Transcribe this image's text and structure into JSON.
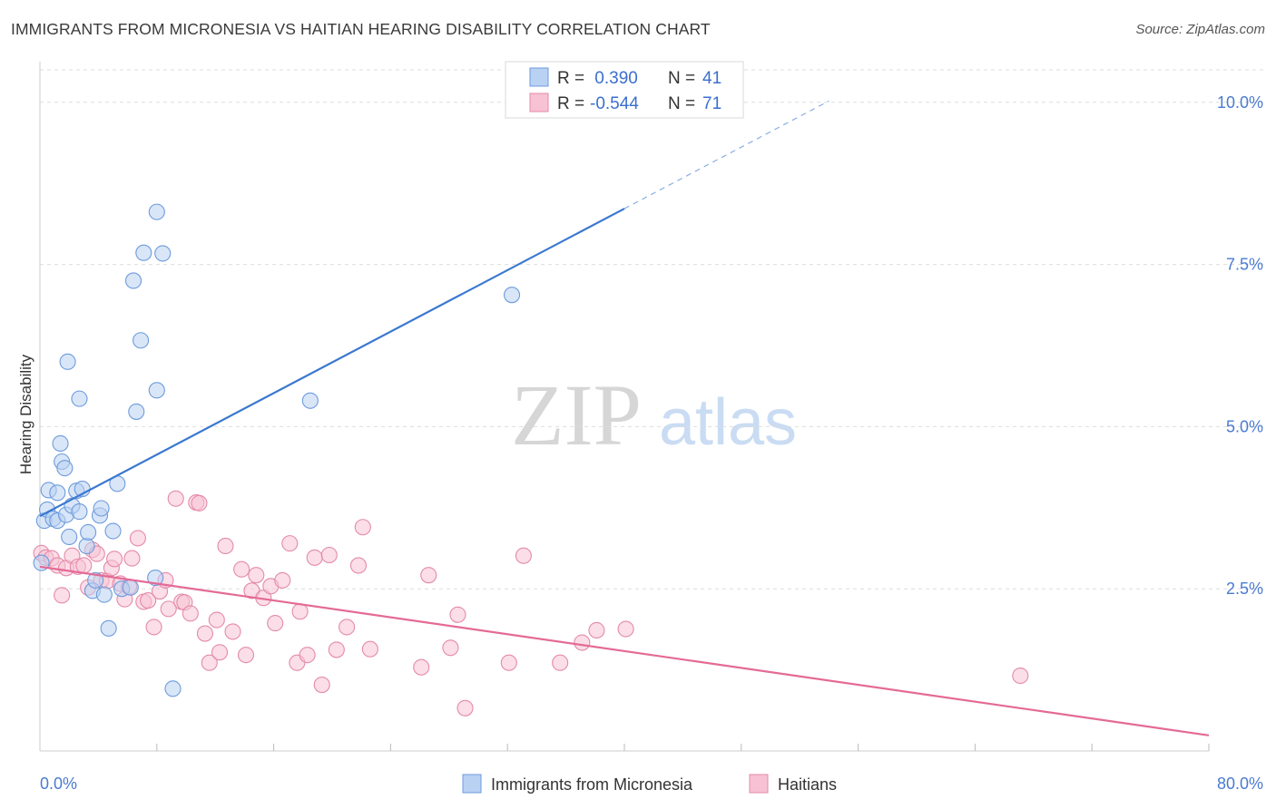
{
  "title": "IMMIGRANTS FROM MICRONESIA VS HAITIAN HEARING DISABILITY CORRELATION CHART",
  "source": "Source: ZipAtlas.com",
  "watermark": {
    "zip": "ZIP",
    "atlas": "atlas"
  },
  "colors": {
    "blue": "#3a78d0",
    "blue_fill": "#b9d1f3",
    "pink": "#e46a96",
    "pink_fill": "#f7c2d3",
    "grid": "#dddddd",
    "tick_label": "#4a7bd0"
  },
  "legend": {
    "rows": [
      {
        "r_label": "R = ",
        "r_value": " 0.390",
        "n_label": "N = ",
        "n_value": "41"
      },
      {
        "r_label": "R = ",
        "r_value": "-0.544",
        "n_label": "N = ",
        "n_value": "71"
      }
    ]
  },
  "bottom_legend": [
    "Immigrants from Micronesia",
    "Haitians"
  ],
  "chart_data": {
    "type": "scatter",
    "title": "IMMIGRANTS FROM MICRONESIA VS HAITIAN HEARING DISABILITY CORRELATION CHART",
    "xlabel": "",
    "ylabel": "Hearing Disability",
    "xlim": [
      0,
      80
    ],
    "ylim": [
      0,
      10.5
    ],
    "x_tick_labels": [
      "0.0%",
      "80.0%"
    ],
    "y_ticks": [
      2.5,
      5.0,
      7.5,
      10.0
    ],
    "y_tick_labels": [
      "2.5%",
      "5.0%",
      "7.5%",
      "10.0%"
    ],
    "series": [
      {
        "name": "Immigrants from Micronesia",
        "r": 0.39,
        "n": 41,
        "trend": {
          "x0": 0,
          "y0": 3.62,
          "x1": 40,
          "y1": 8.36,
          "dash_to_x": 54,
          "dash_to_y": 10.02
        },
        "points": [
          [
            0.1,
            2.9
          ],
          [
            0.3,
            3.55
          ],
          [
            0.5,
            3.72
          ],
          [
            0.6,
            4.02
          ],
          [
            0.9,
            3.58
          ],
          [
            1.2,
            3.55
          ],
          [
            1.2,
            3.98
          ],
          [
            1.4,
            4.74
          ],
          [
            1.5,
            4.46
          ],
          [
            1.7,
            4.36
          ],
          [
            1.8,
            3.64
          ],
          [
            1.9,
            6.0
          ],
          [
            2.0,
            3.3
          ],
          [
            2.2,
            3.78
          ],
          [
            2.5,
            4.01
          ],
          [
            2.7,
            5.43
          ],
          [
            2.7,
            3.69
          ],
          [
            2.9,
            4.04
          ],
          [
            3.2,
            3.16
          ],
          [
            3.3,
            3.37
          ],
          [
            3.6,
            2.47
          ],
          [
            3.8,
            2.63
          ],
          [
            4.1,
            3.63
          ],
          [
            4.2,
            3.74
          ],
          [
            4.4,
            2.41
          ],
          [
            4.7,
            1.89
          ],
          [
            5.0,
            3.39
          ],
          [
            5.3,
            4.12
          ],
          [
            5.6,
            2.5
          ],
          [
            6.2,
            2.52
          ],
          [
            6.4,
            7.25
          ],
          [
            6.9,
            6.33
          ],
          [
            7.1,
            7.68
          ],
          [
            7.9,
            2.67
          ],
          [
            8.0,
            5.56
          ],
          [
            8.0,
            8.31
          ],
          [
            8.4,
            7.67
          ],
          [
            9.1,
            0.96
          ],
          [
            6.6,
            5.23
          ],
          [
            18.5,
            5.4
          ],
          [
            32.3,
            7.03
          ]
        ]
      },
      {
        "name": "Haitians",
        "r": -0.544,
        "n": 71,
        "trend": {
          "x0": 0,
          "y0": 2.84,
          "x1": 80,
          "y1": 0.24
        },
        "points": [
          [
            0.1,
            3.05
          ],
          [
            0.4,
            2.98
          ],
          [
            0.8,
            2.97
          ],
          [
            1.2,
            2.86
          ],
          [
            1.5,
            2.4
          ],
          [
            1.8,
            2.82
          ],
          [
            2.2,
            3.01
          ],
          [
            2.6,
            2.84
          ],
          [
            3.0,
            2.86
          ],
          [
            3.3,
            2.52
          ],
          [
            3.6,
            3.1
          ],
          [
            3.9,
            3.04
          ],
          [
            4.2,
            2.63
          ],
          [
            4.6,
            2.62
          ],
          [
            4.9,
            2.82
          ],
          [
            5.1,
            2.96
          ],
          [
            5.5,
            2.58
          ],
          [
            5.8,
            2.34
          ],
          [
            6.1,
            2.53
          ],
          [
            6.3,
            2.97
          ],
          [
            6.7,
            3.28
          ],
          [
            7.1,
            2.3
          ],
          [
            7.4,
            2.32
          ],
          [
            7.8,
            1.91
          ],
          [
            8.2,
            2.46
          ],
          [
            8.6,
            2.63
          ],
          [
            8.8,
            2.19
          ],
          [
            9.3,
            3.89
          ],
          [
            9.7,
            2.3
          ],
          [
            9.9,
            2.29
          ],
          [
            10.3,
            2.12
          ],
          [
            10.7,
            3.83
          ],
          [
            10.9,
            3.82
          ],
          [
            11.3,
            1.81
          ],
          [
            11.6,
            1.36
          ],
          [
            12.1,
            2.02
          ],
          [
            12.3,
            1.52
          ],
          [
            12.7,
            3.16
          ],
          [
            13.2,
            1.84
          ],
          [
            13.8,
            2.8
          ],
          [
            14.1,
            1.48
          ],
          [
            14.5,
            2.47
          ],
          [
            14.8,
            2.71
          ],
          [
            15.3,
            2.36
          ],
          [
            15.8,
            2.54
          ],
          [
            16.1,
            1.97
          ],
          [
            16.6,
            2.63
          ],
          [
            17.1,
            3.2
          ],
          [
            17.6,
            1.36
          ],
          [
            17.8,
            2.15
          ],
          [
            18.3,
            1.48
          ],
          [
            18.8,
            2.98
          ],
          [
            19.3,
            1.02
          ],
          [
            19.8,
            3.02
          ],
          [
            20.3,
            1.56
          ],
          [
            21.0,
            1.91
          ],
          [
            21.8,
            2.86
          ],
          [
            22.1,
            3.45
          ],
          [
            22.6,
            1.57
          ],
          [
            26.1,
            1.29
          ],
          [
            26.6,
            2.71
          ],
          [
            28.1,
            1.59
          ],
          [
            28.6,
            2.1
          ],
          [
            29.1,
            0.66
          ],
          [
            32.1,
            1.36
          ],
          [
            33.1,
            3.01
          ],
          [
            35.6,
            1.36
          ],
          [
            37.1,
            1.67
          ],
          [
            38.1,
            1.86
          ],
          [
            40.1,
            1.88
          ],
          [
            67.1,
            1.16
          ]
        ]
      }
    ]
  }
}
